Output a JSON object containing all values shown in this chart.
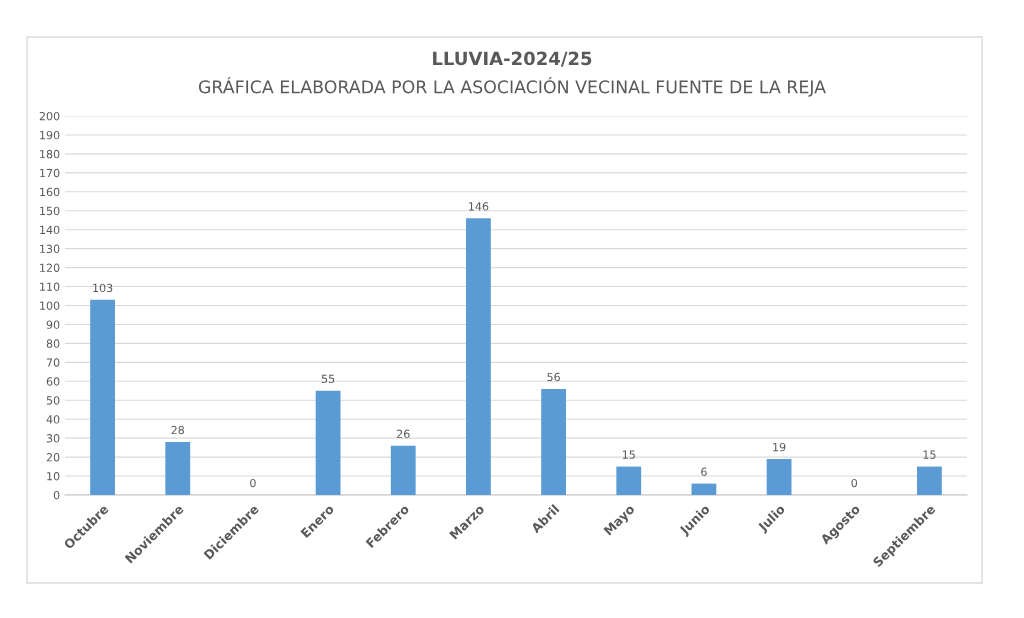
{
  "chart_data": {
    "type": "bar",
    "title": "LLUVIA-2024/25",
    "subtitle": "GRÁFICA ELABORADA POR LA ASOCIACIÓN VECINAL FUENTE DE LA REJA",
    "categories": [
      "Octubre",
      "Noviembre",
      "Diciembre",
      "Enero",
      "Febrero",
      "Marzo",
      "Abril",
      "Mayo",
      "Junio",
      "Julio",
      "Agosto",
      "Septiembre"
    ],
    "values": [
      103,
      28,
      0,
      55,
      26,
      146,
      56,
      15,
      6,
      19,
      0,
      15
    ],
    "color": "#5b9bd5",
    "ylim": [
      0,
      200
    ],
    "yticks": [
      0,
      10,
      20,
      30,
      40,
      50,
      60,
      70,
      80,
      90,
      100,
      110,
      120,
      130,
      140,
      150,
      160,
      170,
      180,
      190,
      200
    ],
    "grid": "y",
    "data_labels": true,
    "legend": false
  }
}
